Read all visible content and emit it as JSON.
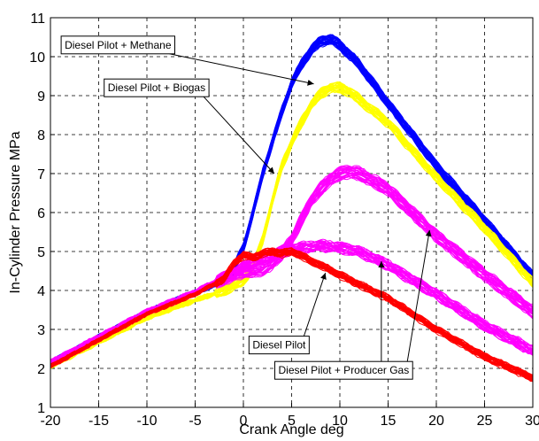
{
  "chart_data": {
    "type": "line",
    "title": "",
    "xlabel": "Crank Angle  deg",
    "ylabel": "In-Cylinder Pressure  MPa",
    "xlim": [
      -20,
      30
    ],
    "ylim": [
      1,
      11
    ],
    "xticks": [
      -20,
      -15,
      -10,
      -5,
      0,
      5,
      10,
      15,
      20,
      25,
      30
    ],
    "yticks": [
      1,
      2,
      3,
      4,
      5,
      6,
      7,
      8,
      9,
      10,
      11
    ],
    "grid": true,
    "legend": "none",
    "series": [
      {
        "name": "Diesel Pilot + Methane",
        "color": "#0000ff",
        "band": 0.12,
        "x": [
          -20,
          -10,
          -5,
          -3,
          -2,
          -1,
          0,
          1,
          2,
          3,
          4,
          5,
          6,
          7,
          8,
          9,
          10,
          12,
          15,
          20,
          25,
          30
        ],
        "y": [
          2.15,
          3.45,
          3.95,
          4.15,
          4.3,
          4.55,
          5.1,
          6.0,
          7.0,
          7.8,
          8.6,
          9.3,
          9.8,
          10.15,
          10.4,
          10.45,
          10.3,
          9.8,
          8.8,
          7.2,
          5.8,
          4.35
        ]
      },
      {
        "name": "Diesel Pilot + Biogas",
        "color": "#ffff00",
        "band": 0.12,
        "x": [
          -20,
          -10,
          -5,
          -2,
          0,
          1,
          2,
          3,
          4,
          5,
          6,
          7,
          8,
          9,
          10,
          11,
          12,
          15,
          20,
          25,
          30
        ],
        "y": [
          2.05,
          3.3,
          3.75,
          4.0,
          4.25,
          4.6,
          5.3,
          6.3,
          7.2,
          7.8,
          8.3,
          8.75,
          9.05,
          9.2,
          9.2,
          9.1,
          8.9,
          8.3,
          6.9,
          5.6,
          4.2
        ]
      },
      {
        "name": "Diesel Pilot + Producer Gas (upper)",
        "color": "#ff00ff",
        "band": 0.16,
        "x": [
          -20,
          -10,
          -5,
          -3,
          -1,
          0,
          1,
          2,
          3,
          4,
          5,
          6,
          7,
          8,
          9,
          10,
          11,
          12,
          15,
          20,
          25,
          30
        ],
        "y": [
          2.15,
          3.45,
          3.95,
          4.2,
          4.4,
          4.5,
          4.5,
          4.55,
          4.7,
          4.95,
          5.3,
          5.8,
          6.3,
          6.6,
          6.85,
          7.0,
          7.05,
          7.0,
          6.6,
          5.4,
          4.4,
          3.45
        ]
      },
      {
        "name": "Diesel Pilot + Producer Gas (lower)",
        "color": "#ff00ff",
        "band": 0.13,
        "x": [
          -20,
          -10,
          -5,
          -3,
          -1,
          0,
          2,
          4,
          6,
          8,
          10,
          12,
          15,
          20,
          25,
          30
        ],
        "y": [
          2.15,
          3.45,
          3.95,
          4.2,
          4.45,
          4.6,
          4.85,
          5.0,
          5.1,
          5.15,
          5.1,
          5.0,
          4.65,
          3.9,
          3.1,
          2.45
        ]
      },
      {
        "name": "Diesel Pilot",
        "color": "#ff0000",
        "band": 0.08,
        "x": [
          -20,
          -10,
          -5,
          -2,
          -1,
          0,
          1,
          2,
          3,
          4,
          5,
          6,
          7,
          8,
          10,
          12,
          15,
          20,
          25,
          30
        ],
        "y": [
          2.05,
          3.4,
          3.9,
          4.3,
          4.7,
          4.9,
          4.85,
          4.95,
          5.0,
          4.95,
          5.0,
          4.9,
          4.75,
          4.65,
          4.4,
          4.15,
          3.8,
          3.0,
          2.3,
          1.75
        ]
      }
    ],
    "annotations": [
      {
        "text": "Diesel Pilot + Methane",
        "label_at": [
          -13,
          10.3
        ],
        "arrows_to": [
          [
            7.3,
            9.3
          ]
        ]
      },
      {
        "text": "Diesel Pilot + Biogas",
        "label_at": [
          -9,
          9.2
        ],
        "arrows_to": [
          [
            3.2,
            7.0
          ]
        ]
      },
      {
        "text": "Diesel Pilot",
        "label_at": [
          3.7,
          2.6
        ],
        "arrows_to": [
          [
            8.5,
            4.45
          ]
        ]
      },
      {
        "text": "Diesel Pilot + Producer Gas",
        "label_at": [
          10.4,
          1.95
        ],
        "arrows_to": [
          [
            14.3,
            4.75
          ],
          [
            19.3,
            5.55
          ]
        ]
      }
    ]
  }
}
